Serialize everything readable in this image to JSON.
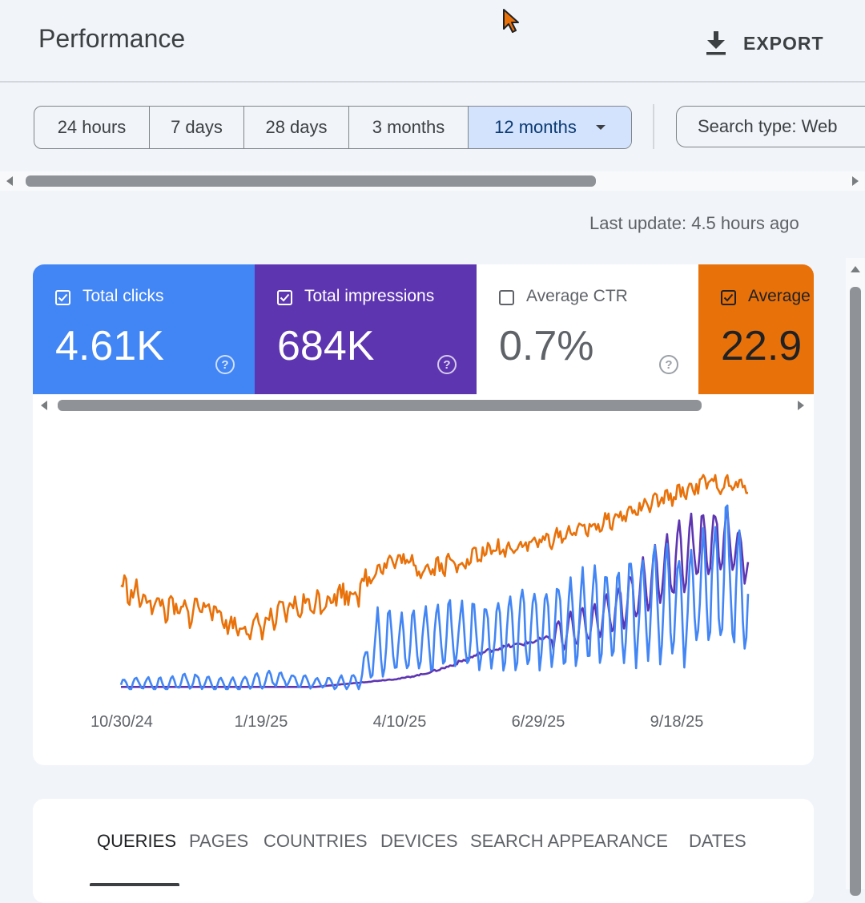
{
  "header": {
    "title": "Performance",
    "export_label": "EXPORT"
  },
  "date_range": {
    "options": [
      "24 hours",
      "7 days",
      "28 days",
      "3 months",
      "12 months"
    ],
    "selected": "12 months"
  },
  "search_type": {
    "label": "Search type: Web"
  },
  "last_update": "Last update: 4.5 hours ago",
  "metrics": {
    "clicks": {
      "label": "Total clicks",
      "value": "4.61K",
      "checked": true,
      "color": "#4285f4"
    },
    "impressions": {
      "label": "Total impressions",
      "value": "684K",
      "checked": true,
      "color": "#5e35b1"
    },
    "ctr": {
      "label": "Average CTR",
      "value": "0.7%",
      "checked": false,
      "color": "#ffffff"
    },
    "position": {
      "label": "Average",
      "value": "22.9",
      "checked": true,
      "color": "#e8710a"
    }
  },
  "dimension_tabs": {
    "queries": "QUERIES",
    "pages": "PAGES",
    "countries": "COUNTRIES",
    "devices": "DEVICES",
    "search_appearance": "SEARCH APPEARANCE",
    "dates": "DATES",
    "active": "QUERIES"
  },
  "chart_data": {
    "type": "line",
    "x_range": [
      "10/30/24",
      "10/29/25"
    ],
    "x_tick_labels": [
      "10/30/24",
      "1/19/25",
      "4/10/25",
      "6/29/25",
      "9/18/25"
    ],
    "y_axis_labels_visible": false,
    "grid": false,
    "legend": "metric cards above chart",
    "series": [
      {
        "name": "Total clicks",
        "color": "#4285f4",
        "style": "weekly oscillation",
        "values": [
          2,
          3,
          2,
          4,
          3,
          2,
          3,
          5,
          4,
          3,
          3,
          4,
          24,
          20,
          22,
          25,
          26,
          24,
          28,
          30,
          29,
          32,
          35,
          34,
          38,
          42,
          40,
          45,
          55,
          44
        ],
        "amplitude": [
          3,
          3,
          3,
          4,
          3,
          3,
          4,
          4,
          3,
          3,
          3,
          4,
          18,
          15,
          15,
          17,
          16,
          16,
          18,
          20,
          19,
          22,
          24,
          24,
          27,
          30,
          28,
          30,
          34,
          30
        ]
      },
      {
        "name": "Total impressions",
        "color": "#5e35b1",
        "style": "smooth",
        "values": [
          1,
          1,
          1,
          1,
          1,
          1,
          1,
          1,
          1,
          1,
          2,
          3,
          4,
          5,
          7,
          10,
          14,
          18,
          20,
          22,
          24,
          28,
          32,
          38,
          46,
          55,
          62,
          68,
          70,
          60
        ],
        "amplitude": [
          0,
          0,
          0,
          0,
          0,
          0,
          0,
          0,
          0,
          0,
          0,
          1,
          1,
          2,
          2,
          4,
          6,
          6,
          7,
          8,
          9,
          10,
          10,
          12,
          16,
          18,
          20,
          18,
          16,
          14
        ]
      },
      {
        "name": "Average position",
        "color": "#e8710a",
        "style": "noisy",
        "values": [
          48,
          42,
          38,
          35,
          40,
          30,
          28,
          32,
          38,
          40,
          44,
          46,
          58,
          60,
          56,
          58,
          60,
          64,
          66,
          68,
          70,
          74,
          76,
          80,
          84,
          88,
          92,
          96,
          95,
          94
        ],
        "amplitude": [
          10,
          10,
          10,
          10,
          10,
          8,
          8,
          10,
          10,
          10,
          10,
          10,
          8,
          8,
          8,
          8,
          8,
          8,
          6,
          6,
          6,
          6,
          6,
          6,
          6,
          6,
          6,
          6,
          6,
          6
        ]
      }
    ]
  }
}
